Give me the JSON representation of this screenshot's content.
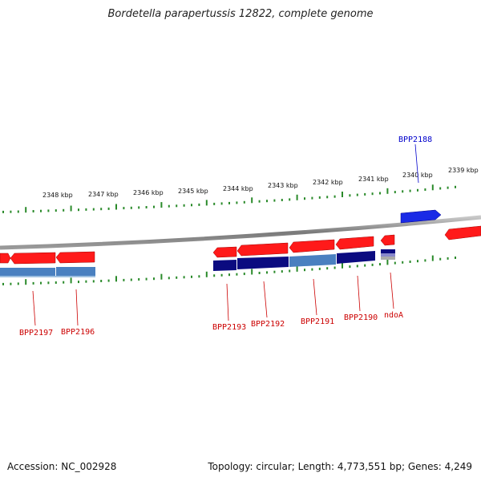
{
  "title": "Bordetella parapertussis 12822, complete genome",
  "footer": {
    "accession": "Accession: NC_002928",
    "summary": "Topology: circular; Length: 4,773,551 bp; Genes: 4,249"
  },
  "colors": {
    "forward_gene": "#ff1a1a",
    "highlight_gene": "#1a2ae6",
    "blue_dark": "#0b0b80",
    "blue_light": "#4a80c0",
    "tick": "#2a8a2a",
    "backbone": "#8a8a8a",
    "label_red": "#cc0000",
    "label_blue": "#0000cc"
  },
  "scale_labels": [
    {
      "kbp": 2348,
      "text": "2348 kbp"
    },
    {
      "kbp": 2347,
      "text": "2347 kbp"
    },
    {
      "kbp": 2346,
      "text": "2346 kbp"
    },
    {
      "kbp": 2345,
      "text": "2345 kbp"
    },
    {
      "kbp": 2344,
      "text": "2344 kbp"
    },
    {
      "kbp": 2343,
      "text": "2343 kbp"
    },
    {
      "kbp": 2342,
      "text": "2342 kbp"
    },
    {
      "kbp": 2341,
      "text": "2341 kbp"
    },
    {
      "kbp": 2340,
      "text": "2340 kbp"
    },
    {
      "kbp": 2339,
      "text": "2339 kbp"
    }
  ],
  "gene_labels": [
    {
      "name": "BPP2188",
      "color": "blue"
    },
    {
      "name": "BPP2197",
      "color": "red"
    },
    {
      "name": "BPP2196",
      "color": "red"
    },
    {
      "name": "BPP2193",
      "color": "red"
    },
    {
      "name": "BPP2192",
      "color": "red"
    },
    {
      "name": "BPP2191",
      "color": "red"
    },
    {
      "name": "BPP2190",
      "color": "red"
    },
    {
      "name": "ndoA",
      "color": "red"
    }
  ]
}
